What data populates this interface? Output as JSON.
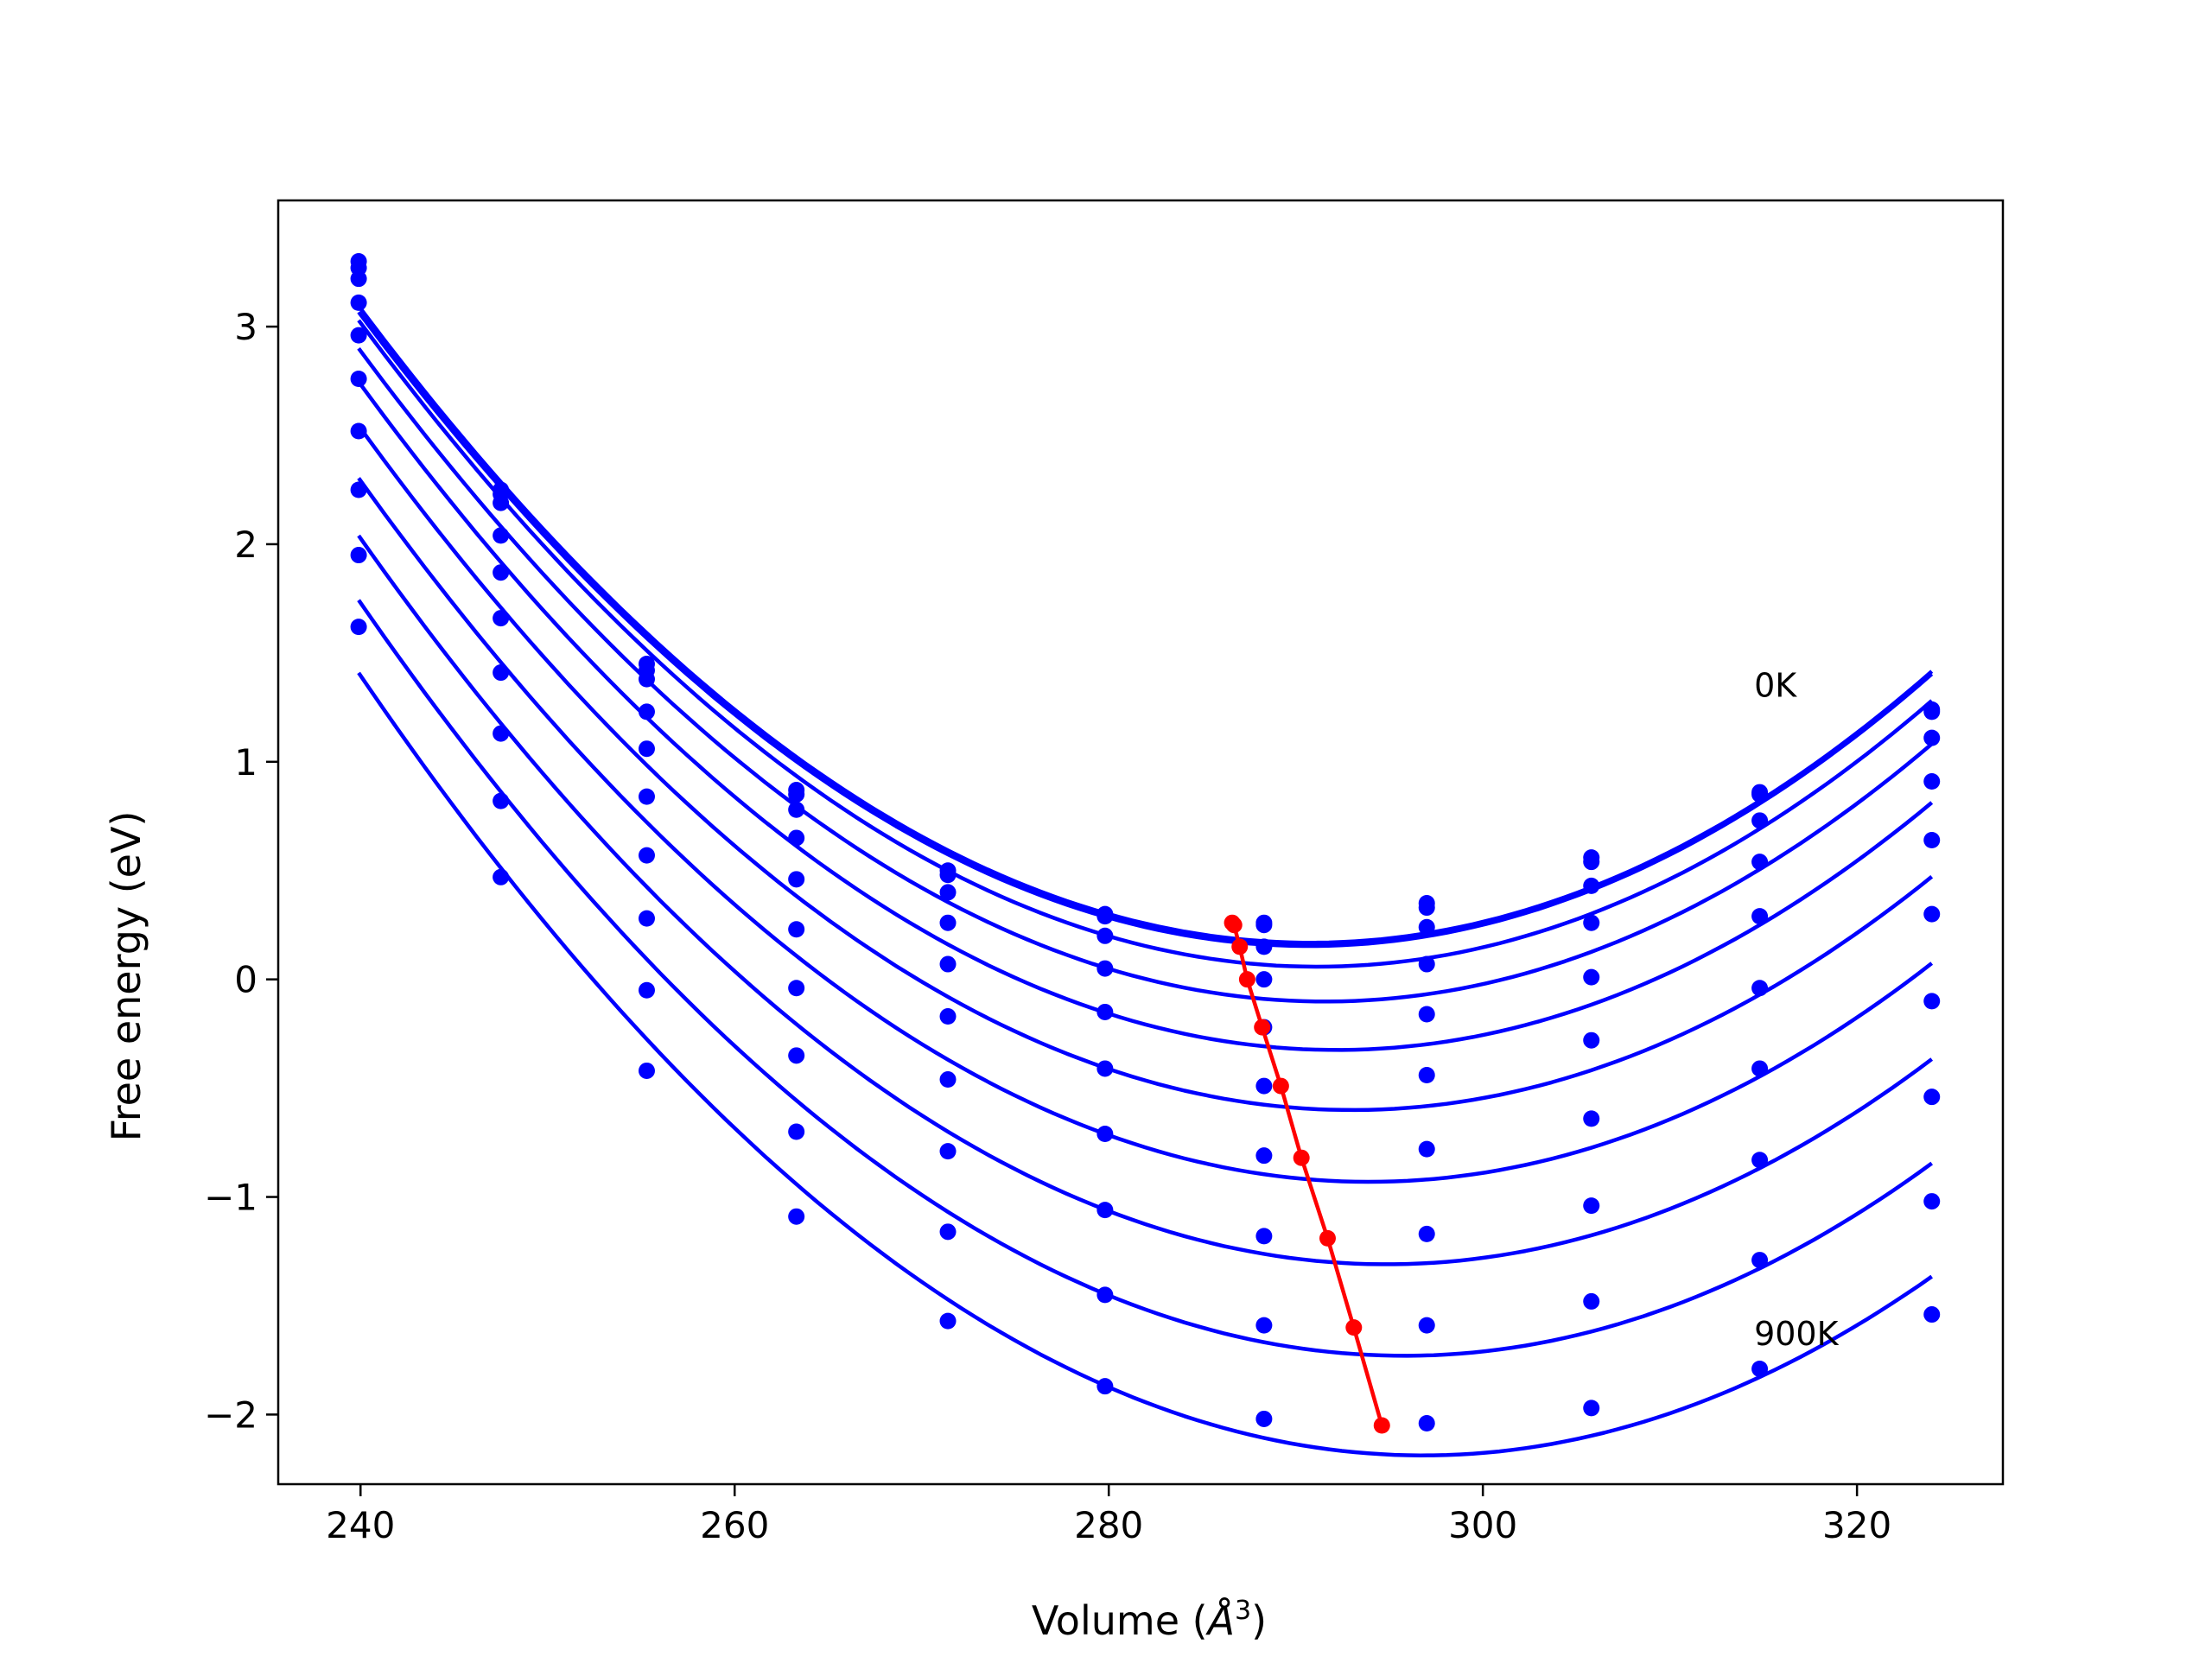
{
  "chart_data": {
    "type": "line",
    "title": "",
    "xlabel": "Volume (",
    "xlabel_unit": "Å",
    "xlabel_exp": "3",
    "xlabel_close": ")",
    "ylabel": "Free energy (eV)",
    "xlim": [
      235.6,
      327.8
    ],
    "ylim": [
      -2.32,
      3.58
    ],
    "xticks": [
      240,
      260,
      280,
      300,
      320
    ],
    "xtick_labels": [
      "240",
      "260",
      "280",
      "300",
      "320"
    ],
    "yticks": [
      -2,
      -1,
      0,
      1,
      2,
      3
    ],
    "ytick_labels": [
      "−2",
      "−1",
      "0",
      "1",
      "2",
      "3"
    ],
    "grid": false,
    "annotations": [
      {
        "text": "0K",
        "x": 314.5,
        "y": 1.3
      },
      {
        "text": "900K",
        "x": 314.5,
        "y": -1.68
      }
    ],
    "x": [
      239.9,
      247.5,
      255.3,
      263.3,
      271.4,
      279.8,
      288.3,
      297.0,
      305.8,
      314.8,
      324.0
    ],
    "series_color": "#0000ff",
    "min_color": "#ff0000",
    "series": [
      {
        "values": [
          3.3,
          2.25,
          1.45,
          0.87,
          0.5,
          0.3,
          0.26,
          0.35,
          0.56,
          0.86,
          1.24
        ],
        "min": [
          286.6,
          0.26
        ]
      },
      {
        "values": [
          3.27,
          2.23,
          1.42,
          0.85,
          0.48,
          0.29,
          0.25,
          0.33,
          0.54,
          0.85,
          1.23
        ],
        "min": [
          286.7,
          0.25
        ]
      },
      {
        "values": [
          3.22,
          2.19,
          1.38,
          0.78,
          0.4,
          0.2,
          0.15,
          0.24,
          0.43,
          0.73,
          1.11
        ],
        "min": [
          287.0,
          0.15
        ]
      },
      {
        "values": [
          3.11,
          2.04,
          1.23,
          0.65,
          0.26,
          0.05,
          0.0,
          0.07,
          0.26,
          0.54,
          0.91
        ],
        "min": [
          287.4,
          0.0
        ]
      },
      {
        "values": [
          2.96,
          1.87,
          1.06,
          0.46,
          0.07,
          -0.15,
          -0.22,
          -0.16,
          0.01,
          0.29,
          0.64
        ],
        "min": [
          288.2,
          -0.22
        ]
      },
      {
        "values": [
          2.76,
          1.66,
          0.84,
          0.23,
          -0.17,
          -0.41,
          -0.49,
          -0.44,
          -0.28,
          -0.04,
          0.3
        ],
        "min": [
          289.2,
          -0.49
        ]
      },
      {
        "values": [
          2.52,
          1.41,
          0.57,
          -0.04,
          -0.46,
          -0.71,
          -0.81,
          -0.78,
          -0.64,
          -0.41,
          -0.1
        ],
        "min": [
          290.3,
          -0.82
        ]
      },
      {
        "values": [
          2.25,
          1.13,
          0.28,
          -0.35,
          -0.79,
          -1.06,
          -1.18,
          -1.17,
          -1.04,
          -0.83,
          -0.54
        ],
        "min": [
          291.7,
          -1.19
        ]
      },
      {
        "values": [
          1.95,
          0.82,
          -0.05,
          -0.7,
          -1.16,
          -1.45,
          -1.59,
          -1.59,
          -1.48,
          -1.29,
          -1.02
        ],
        "min": [
          293.1,
          -1.6
        ]
      },
      {
        "values": [
          1.62,
          0.47,
          -0.42,
          -1.09,
          -1.57,
          -1.87,
          -2.02,
          -2.04,
          -1.97,
          -1.79,
          -1.54
        ],
        "min": [
          294.6,
          -2.05
        ]
      }
    ]
  }
}
